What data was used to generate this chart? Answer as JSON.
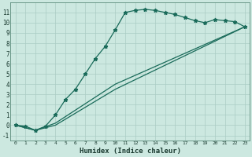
{
  "title": "",
  "xlabel": "Humidex (Indice chaleur)",
  "bg_color": "#cce8e0",
  "grid_color": "#aaccc4",
  "line_color": "#1a6b5a",
  "xlim": [
    -0.5,
    23.5
  ],
  "ylim": [
    -1.5,
    12.0
  ],
  "xticks": [
    0,
    1,
    2,
    3,
    4,
    5,
    6,
    7,
    8,
    9,
    10,
    11,
    12,
    13,
    14,
    15,
    16,
    17,
    18,
    19,
    20,
    21,
    22,
    23
  ],
  "yticks": [
    -1,
    0,
    1,
    2,
    3,
    4,
    5,
    6,
    7,
    8,
    9,
    10,
    11
  ],
  "line1_x": [
    0,
    1,
    2,
    3,
    4,
    5,
    6,
    7,
    8,
    9,
    10,
    11,
    12,
    13,
    14,
    15,
    16,
    17,
    18,
    19,
    20,
    21,
    22,
    23
  ],
  "line1_y": [
    0.0,
    -0.1,
    -0.5,
    -0.1,
    1.0,
    2.5,
    3.5,
    5.0,
    6.5,
    7.7,
    9.3,
    11.0,
    11.2,
    11.3,
    11.2,
    11.0,
    10.8,
    10.5,
    10.2,
    10.0,
    10.3,
    10.2,
    10.1,
    9.6
  ],
  "line2_x": [
    0,
    2,
    4,
    10,
    23
  ],
  "line2_y": [
    0.0,
    -0.5,
    0.0,
    3.5,
    9.6
  ],
  "line3_x": [
    0,
    2,
    4,
    10,
    23
  ],
  "line3_y": [
    0.0,
    -0.5,
    0.2,
    4.0,
    9.6
  ]
}
